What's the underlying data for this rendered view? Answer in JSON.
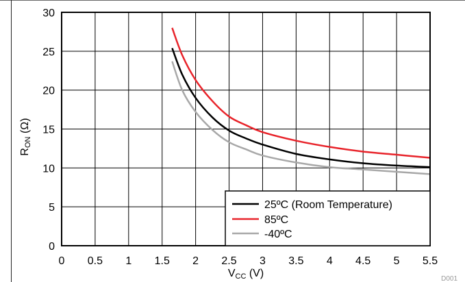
{
  "chart_data": {
    "type": "line",
    "xlabel": {
      "main": "V",
      "sub": "CC",
      "unit": " (V)"
    },
    "ylabel": {
      "main": "R",
      "sub": "ON",
      "unit": " (Ω)"
    },
    "xlim": [
      0,
      5.5
    ],
    "ylim": [
      0,
      30
    ],
    "x_ticks": [
      "0",
      "0.5",
      "1",
      "1.5",
      "2",
      "2.5",
      "3",
      "3.5",
      "4",
      "4.5",
      "5",
      "5.5"
    ],
    "y_ticks": [
      "0",
      "5",
      "10",
      "15",
      "20",
      "25",
      "30"
    ],
    "grid": true,
    "legend_position": "bottom-right",
    "figure_id": "D001",
    "series": [
      {
        "name": "25ºC (Room Temperature)",
        "color": "#000000",
        "x": [
          1.65,
          1.8,
          2.0,
          2.25,
          2.5,
          2.75,
          3.0,
          3.5,
          4.0,
          4.5,
          5.0,
          5.5
        ],
        "y": [
          25.4,
          22.0,
          19.0,
          16.5,
          14.8,
          13.8,
          13.0,
          11.8,
          11.1,
          10.6,
          10.3,
          10.1
        ]
      },
      {
        "name": "85ºC",
        "color": "#e8232a",
        "x": [
          1.65,
          1.8,
          2.0,
          2.25,
          2.5,
          2.75,
          3.0,
          3.5,
          4.0,
          4.5,
          5.0,
          5.5
        ],
        "y": [
          28.0,
          24.5,
          21.3,
          18.6,
          16.6,
          15.5,
          14.6,
          13.5,
          12.7,
          12.1,
          11.7,
          11.3
        ]
      },
      {
        "name": "-40ºC",
        "color": "#a8a8a8",
        "x": [
          1.65,
          1.8,
          2.0,
          2.25,
          2.5,
          2.75,
          3.0,
          3.5,
          4.0,
          4.5,
          5.0,
          5.5
        ],
        "y": [
          23.7,
          20.0,
          17.2,
          14.9,
          13.3,
          12.4,
          11.6,
          10.7,
          10.1,
          9.8,
          9.5,
          9.2
        ]
      }
    ]
  }
}
